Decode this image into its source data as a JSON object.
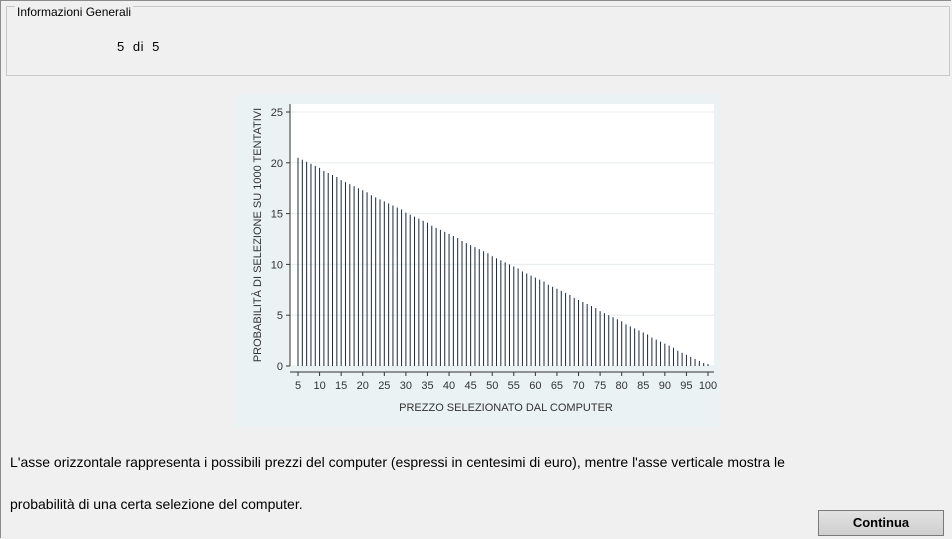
{
  "info_panel": {
    "title": "Informazioni Generali",
    "counter": "5 di 5"
  },
  "chart_data": {
    "type": "bar",
    "x": [
      5,
      6,
      7,
      8,
      9,
      10,
      11,
      12,
      13,
      14,
      15,
      16,
      17,
      18,
      19,
      20,
      21,
      22,
      23,
      24,
      25,
      26,
      27,
      28,
      29,
      30,
      31,
      32,
      33,
      34,
      35,
      36,
      37,
      38,
      39,
      40,
      41,
      42,
      43,
      44,
      45,
      46,
      47,
      48,
      49,
      50,
      51,
      52,
      53,
      54,
      55,
      56,
      57,
      58,
      59,
      60,
      61,
      62,
      63,
      64,
      65,
      66,
      67,
      68,
      69,
      70,
      71,
      72,
      73,
      74,
      75,
      76,
      77,
      78,
      79,
      80,
      81,
      82,
      83,
      84,
      85,
      86,
      87,
      88,
      89,
      90,
      91,
      92,
      93,
      94,
      95,
      96,
      97,
      98,
      99,
      100
    ],
    "values": [
      20.5,
      20.3,
      20.1,
      19.9,
      19.7,
      19.5,
      19.2,
      19.0,
      18.8,
      18.6,
      18.3,
      18.1,
      17.9,
      17.7,
      17.5,
      17.3,
      17.1,
      16.8,
      16.6,
      16.4,
      16.2,
      16.0,
      15.8,
      15.6,
      15.4,
      15.1,
      14.9,
      14.7,
      14.5,
      14.3,
      14.1,
      13.8,
      13.6,
      13.4,
      13.2,
      13.0,
      12.8,
      12.6,
      12.3,
      12.1,
      11.9,
      11.7,
      11.5,
      11.3,
      11.1,
      10.8,
      10.6,
      10.4,
      10.2,
      10.0,
      9.8,
      9.6,
      9.3,
      9.1,
      8.9,
      8.7,
      8.5,
      8.3,
      8.0,
      7.8,
      7.6,
      7.4,
      7.2,
      7.0,
      6.7,
      6.5,
      6.3,
      6.1,
      5.9,
      5.7,
      5.4,
      5.2,
      5.0,
      4.8,
      4.6,
      4.4,
      4.1,
      3.9,
      3.7,
      3.5,
      3.3,
      3.1,
      2.8,
      2.6,
      2.4,
      2.2,
      2.0,
      1.8,
      1.5,
      1.3,
      1.1,
      0.9,
      0.7,
      0.5,
      0.3,
      0.2
    ],
    "xticks": [
      "5",
      "10",
      "15",
      "20",
      "25",
      "30",
      "35",
      "40",
      "45",
      "50",
      "55",
      "60",
      "65",
      "70",
      "75",
      "80",
      "85",
      "90",
      "95",
      "100"
    ],
    "yticks": [
      "0",
      "5",
      "10",
      "15",
      "20",
      "25"
    ],
    "xlabel": "PREZZO SELEZIONATO DAL COMPUTER",
    "ylabel": "PROBABILITÀ DI SELEZIONE SU 1000 TENTATIVI",
    "xlim": [
      5,
      100
    ],
    "ylim": [
      0,
      25
    ],
    "grid": true,
    "colors": {
      "bar": "#1a2a3a",
      "plot_bg": "#ffffff",
      "outer_bg": "#eaf2f3",
      "grid": "#e6ecee"
    }
  },
  "description": {
    "line1": "L'asse orizzontale rappresenta i possibili prezzi del computer (espressi in centesimi di euro), mentre l'asse verticale mostra le",
    "line2": "probabilità di una certa selezione del computer."
  },
  "actions": {
    "continue_label": "Continua"
  }
}
